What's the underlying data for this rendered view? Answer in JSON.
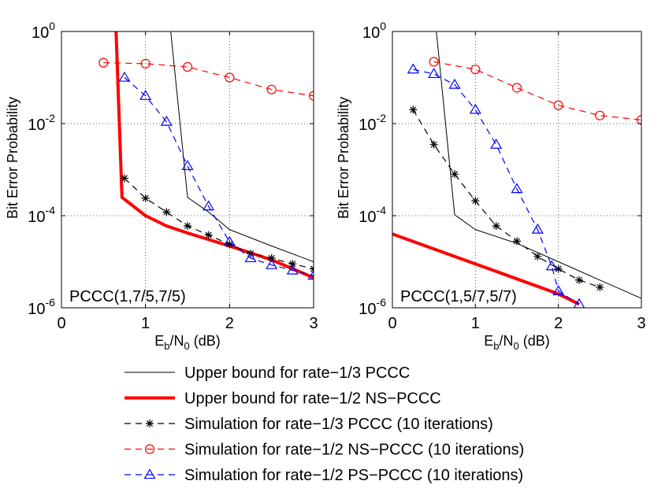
{
  "chart_data": [
    {
      "type": "line",
      "yscale": "log",
      "panel_label": "PCCC(1,7/5,7/5)",
      "xlabel": {
        "main": "E",
        "sub1": "b",
        "mid": "/N",
        "sub2": "0",
        "tail": " (dB)"
      },
      "ylabel": "Bit Error Probability",
      "xlim": [
        0,
        3
      ],
      "ylim": [
        1e-06,
        1
      ],
      "xticks": [
        "0",
        "1",
        "2",
        "3"
      ],
      "yticks": [
        {
          "value": 1e-06,
          "base": "10",
          "exp": "-6"
        },
        {
          "value": 0.0001,
          "base": "10",
          "exp": "-4"
        },
        {
          "value": 0.01,
          "base": "10",
          "exp": "-2"
        },
        {
          "value": 1,
          "base": "10",
          "exp": "0"
        }
      ],
      "grid": true,
      "series": [
        {
          "key": "ub13",
          "x": [
            1.3,
            1.5,
            1.75,
            2.0,
            2.5,
            3.0
          ],
          "y": [
            1.0,
            0.00025,
            0.00012,
            5e-05,
            2.2e-05,
            1e-05
          ]
        },
        {
          "key": "ub12",
          "x": [
            0.65,
            0.72,
            1.0,
            1.25,
            1.5,
            2.0,
            2.5,
            3.0
          ],
          "y": [
            1.0,
            0.00025,
            0.0001,
            6e-05,
            4.2e-05,
            2.2e-05,
            1.1e-05,
            4.5e-06
          ]
        },
        {
          "key": "sim13",
          "x": [
            0.75,
            1.0,
            1.25,
            1.5,
            1.75,
            2.0,
            2.25,
            2.5,
            2.75,
            3.0
          ],
          "y": [
            0.00065,
            0.00024,
            0.00012,
            6e-05,
            3.8e-05,
            2.4e-05,
            1.5e-05,
            1.2e-05,
            9e-06,
            7e-06
          ]
        },
        {
          "key": "simns",
          "x": [
            0.5,
            1.0,
            1.5,
            2.0,
            2.5,
            3.0
          ],
          "y": [
            0.21,
            0.2,
            0.17,
            0.1,
            0.055,
            0.04
          ]
        },
        {
          "key": "simps",
          "x": [
            0.75,
            1.0,
            1.25,
            1.5,
            1.75,
            2.0,
            2.25,
            2.5,
            2.75,
            3.0
          ],
          "y": [
            0.1,
            0.04,
            0.011,
            0.0012,
            0.00016,
            2.7e-05,
            1.2e-05,
            8.5e-06,
            6.5e-06,
            5e-06
          ]
        }
      ]
    },
    {
      "type": "line",
      "yscale": "log",
      "panel_label": "PCCC(1,5/7,5/7)",
      "xlabel": {
        "main": "E",
        "sub1": "b",
        "mid": "/N",
        "sub2": "0",
        "tail": " (dB)"
      },
      "ylabel": "Bit Error Probability",
      "xlim": [
        0,
        3
      ],
      "ylim": [
        1e-06,
        1
      ],
      "xticks": [
        "0",
        "1",
        "2",
        "3"
      ],
      "yticks": [
        {
          "value": 1e-06,
          "base": "10",
          "exp": "-6"
        },
        {
          "value": 0.0001,
          "base": "10",
          "exp": "-4"
        },
        {
          "value": 0.01,
          "base": "10",
          "exp": "-2"
        },
        {
          "value": 1,
          "base": "10",
          "exp": "0"
        }
      ],
      "grid": true,
      "series": [
        {
          "key": "ub13",
          "x": [
            0.53,
            0.75,
            1.0,
            1.5,
            2.0,
            2.5,
            3.0
          ],
          "y": [
            1.0,
            0.000105,
            5e-05,
            2.5e-05,
            1e-05,
            4e-06,
            1.6e-06
          ]
        },
        {
          "key": "ub12",
          "x": [
            0.0,
            1.0,
            2.0,
            2.25
          ],
          "y": [
            4e-05,
            9e-06,
            2e-06,
            1.2e-06
          ]
        },
        {
          "key": "sim13",
          "x": [
            0.25,
            0.5,
            0.75,
            1.0,
            1.25,
            1.5,
            1.75,
            2.0,
            2.25,
            2.5
          ],
          "y": [
            0.02,
            0.0035,
            0.0008,
            0.00021,
            6e-05,
            2.8e-05,
            1.3e-05,
            7e-06,
            4e-06,
            2.8e-06
          ]
        },
        {
          "key": "simns",
          "x": [
            0.5,
            1.0,
            1.5,
            2.0,
            2.5,
            3.0
          ],
          "y": [
            0.22,
            0.15,
            0.06,
            0.025,
            0.015,
            0.012
          ]
        },
        {
          "key": "simps",
          "x": [
            0.25,
            0.5,
            0.75,
            1.0,
            1.25,
            1.5,
            1.75,
            1.92,
            2.0,
            2.25
          ],
          "y": [
            0.15,
            0.12,
            0.07,
            0.02,
            0.0035,
            0.00038,
            5e-05,
            8e-06,
            2.3e-06,
            1.2e-06
          ]
        }
      ]
    }
  ],
  "series_styles": {
    "ub13": {
      "color": "#000000",
      "width": 1,
      "dash": "",
      "marker": "none"
    },
    "ub12": {
      "color": "#ff0000",
      "width": 4,
      "dash": "",
      "marker": "none"
    },
    "sim13": {
      "color": "#000000",
      "width": 1.2,
      "dash": "8 6",
      "marker": "star"
    },
    "simns": {
      "color": "#ff0000",
      "width": 1.2,
      "dash": "8 6",
      "marker": "circle"
    },
    "simps": {
      "color": "#0000ff",
      "width": 1.2,
      "dash": "8 6",
      "marker": "triangle"
    }
  },
  "legend": [
    {
      "key": "ub13",
      "label": "Upper bound for rate−1/3 PCCC"
    },
    {
      "key": "ub12",
      "label": "Upper bound for rate−1/2 NS−PCCC"
    },
    {
      "key": "sim13",
      "label": "Simulation for rate−1/3 PCCC (10 iterations)"
    },
    {
      "key": "simns",
      "label": "Simulation for rate−1/2 NS−PCCC (10 iterations)"
    },
    {
      "key": "simps",
      "label": "Simulation for rate−1/2 PS−PCCC (10 iterations)"
    }
  ]
}
